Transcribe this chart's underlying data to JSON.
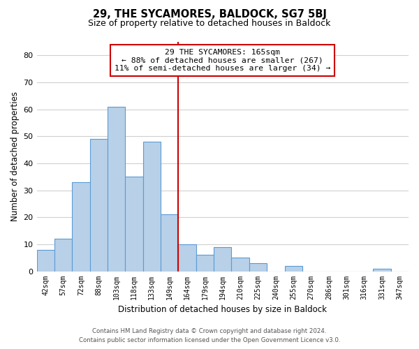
{
  "title": "29, THE SYCAMORES, BALDOCK, SG7 5BJ",
  "subtitle": "Size of property relative to detached houses in Baldock",
  "xlabel": "Distribution of detached houses by size in Baldock",
  "ylabel": "Number of detached properties",
  "bar_labels": [
    "42sqm",
    "57sqm",
    "72sqm",
    "88sqm",
    "103sqm",
    "118sqm",
    "133sqm",
    "149sqm",
    "164sqm",
    "179sqm",
    "194sqm",
    "210sqm",
    "225sqm",
    "240sqm",
    "255sqm",
    "270sqm",
    "286sqm",
    "301sqm",
    "316sqm",
    "331sqm",
    "347sqm"
  ],
  "bar_values": [
    8,
    12,
    33,
    49,
    61,
    35,
    48,
    21,
    10,
    6,
    9,
    5,
    3,
    0,
    2,
    0,
    0,
    0,
    0,
    1,
    0
  ],
  "bar_color": "#b8d0e8",
  "bar_edge_color": "#5b9bd5",
  "vline_color": "#cc0000",
  "annotation_title": "29 THE SYCAMORES: 165sqm",
  "annotation_line1": "← 88% of detached houses are smaller (267)",
  "annotation_line2": "11% of semi-detached houses are larger (34) →",
  "annotation_box_color": "#ffffff",
  "annotation_box_edge": "#cc0000",
  "ylim": [
    0,
    85
  ],
  "yticks": [
    0,
    10,
    20,
    30,
    40,
    50,
    60,
    70,
    80
  ],
  "footer_line1": "Contains HM Land Registry data © Crown copyright and database right 2024.",
  "footer_line2": "Contains public sector information licensed under the Open Government Licence v3.0.",
  "bg_color": "#ffffff",
  "grid_color": "#d0d0d0"
}
